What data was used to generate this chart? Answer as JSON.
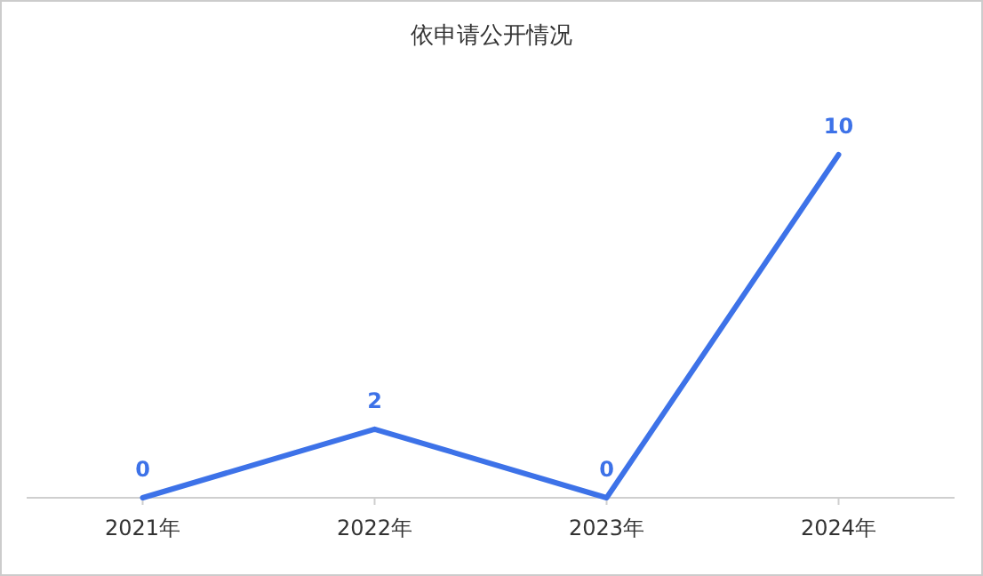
{
  "chart_data": {
    "type": "line",
    "title": "依申请公开情况",
    "categories": [
      "2021年",
      "2022年",
      "2023年",
      "2024年"
    ],
    "series": [
      {
        "color": "#3d72e8",
        "values": [
          0,
          2,
          0,
          10
        ]
      }
    ],
    "data_labels": true,
    "marker": "none"
  }
}
